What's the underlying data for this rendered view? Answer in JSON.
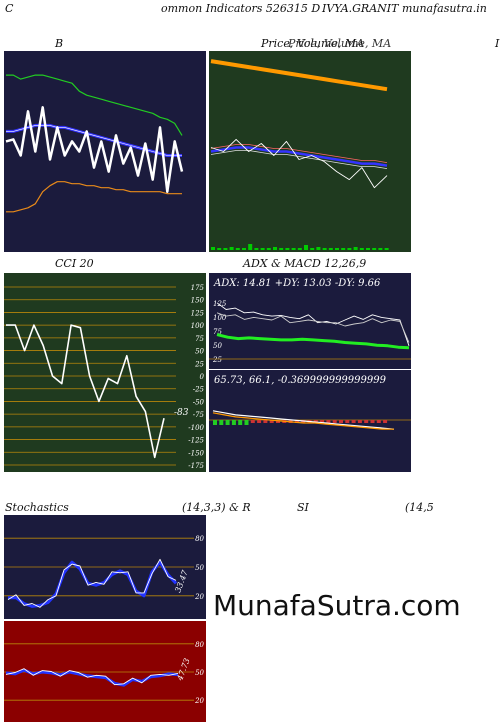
{
  "header": {
    "left_letter": "C",
    "title_mid": "ommon  Indicators 526315 D",
    "title_right": "IVYA.GRANIT munafasutra.in"
  },
  "colors": {
    "navy_bg": "#1b1b3d",
    "green_bg": "#1f3a1f",
    "red_bg": "#8b0000",
    "grid_orange": "#b8860b",
    "price_line": "#ffffff",
    "bb_mid": "#3333ff",
    "bb_upper": "#22cc22",
    "bb_lower": "#e88a1a",
    "ma_orange": "#ff9900"
  },
  "panels": {
    "bollinger": {
      "label": "B"
    },
    "price_ma": {
      "label": "Price,  Volume,  MA",
      "label_overlay": "Price,  Volume,  MA",
      "right_edge_letter": "I"
    },
    "cci": {
      "label": "CCI 20",
      "value_label": "-83",
      "ticks": [
        "175",
        "150",
        "125",
        "100",
        "75",
        "50",
        "25",
        "0",
        "-25",
        "-50",
        "-75",
        "-100",
        "-125",
        "-150",
        "-175"
      ]
    },
    "adx_macd": {
      "label": "ADX  & MACD 12,26,9",
      "adx_text": "ADX: 14.81  +DY: 13.03  -DY: 9.66",
      "adx_ticks": [
        "125",
        "100",
        "75",
        "50",
        "25"
      ],
      "macd_text": "65.73,  66.1,  -0.369999999999999"
    },
    "stoch": {
      "label_left": "Stochastics",
      "label_mid": "(14,3,3) & R",
      "ticks": [
        "80",
        "50",
        "20"
      ],
      "value_label": "33.47"
    },
    "rsi": {
      "label_left": "SI",
      "label_right": "(14,5",
      "ticks": [
        "80",
        "50",
        "20"
      ],
      "value_label": "47.73"
    }
  },
  "watermark": "MunafaSutra.com",
  "chart_data": [
    {
      "type": "line",
      "title": "B",
      "series": [
        {
          "values": [
            55,
            56,
            48,
            70,
            50,
            72,
            46,
            62,
            48,
            55,
            50,
            60,
            42,
            55,
            40,
            58,
            44,
            52,
            38,
            54,
            36,
            62,
            30,
            55,
            40
          ]
        },
        {
          "values": [
            60,
            60,
            61,
            62,
            63,
            63,
            63,
            62,
            62,
            61,
            60,
            59,
            58,
            57,
            56,
            55,
            54,
            53,
            52,
            51,
            50,
            49,
            48,
            48,
            48
          ]
        },
        {
          "values": [
            88,
            88,
            86,
            87,
            88,
            88,
            87,
            86,
            85,
            84,
            80,
            78,
            77,
            76,
            75,
            74,
            73,
            72,
            71,
            70,
            69,
            67,
            66,
            64,
            58
          ]
        },
        {
          "values": [
            20,
            20,
            21,
            22,
            24,
            30,
            33,
            35,
            35,
            34,
            34,
            33,
            33,
            32,
            32,
            31,
            31,
            30,
            30,
            30,
            30,
            30,
            29,
            29,
            29
          ]
        }
      ]
    },
    {
      "type": "line",
      "title": "Price,  Volume,  MA",
      "series": [
        {
          "values": [
            95,
            94,
            93,
            92,
            91,
            90,
            89,
            88,
            87,
            86,
            85,
            84,
            83,
            82,
            81
          ]
        },
        {
          "values": [
            52,
            50,
            56,
            50,
            54,
            48,
            55,
            46,
            48,
            45,
            40,
            36,
            42,
            32,
            38
          ]
        },
        {
          "values": [
            50,
            51,
            52,
            52,
            51,
            50,
            50,
            49,
            48,
            47,
            46,
            45,
            44,
            44,
            43
          ]
        }
      ]
    },
    {
      "type": "line",
      "title": "CCI 20",
      "ylim": [
        -175,
        175
      ],
      "series": [
        {
          "values": [
            100,
            100,
            50,
            100,
            60,
            0,
            -15,
            100,
            95,
            0,
            -50,
            -5,
            -15,
            40,
            -40,
            -70,
            -160,
            -83
          ]
        }
      ]
    },
    {
      "type": "line",
      "title": "ADX  & MACD 12,26,9",
      "series": [
        {
          "values": [
            52,
            48,
            46,
            47,
            46,
            45,
            44,
            44,
            45,
            44,
            43,
            42,
            40,
            39,
            38,
            36,
            35,
            33,
            32
          ]
        },
        {
          "values": [
            100,
            90,
            92,
            85,
            86,
            82,
            80,
            81,
            78,
            76,
            82,
            70,
            72,
            68,
            74,
            80,
            75,
            82,
            78,
            76,
            74,
            35
          ]
        },
        {
          "values": [
            85,
            80,
            82,
            75,
            78,
            76,
            74,
            80,
            70,
            72,
            74,
            72,
            70,
            70,
            65,
            68,
            70,
            76,
            70,
            74,
            72,
            40
          ]
        }
      ]
    },
    {
      "type": "line",
      "title": "Stochastics (14,3,3)",
      "ylim": [
        0,
        100
      ],
      "series": [
        {
          "values": [
            18,
            18,
            12,
            9,
            10,
            13,
            22,
            44,
            55,
            48,
            33,
            31,
            34,
            42,
            46,
            42,
            25,
            20,
            45,
            55,
            42,
            33
          ]
        }
      ]
    },
    {
      "type": "line",
      "title": "RSI (14)",
      "ylim": [
        0,
        100
      ],
      "series": [
        {
          "values": [
            49,
            48,
            52,
            48,
            50,
            49,
            47,
            50,
            48,
            46,
            45,
            44,
            38,
            36,
            42,
            40,
            45,
            46,
            48,
            47
          ]
        }
      ]
    }
  ]
}
